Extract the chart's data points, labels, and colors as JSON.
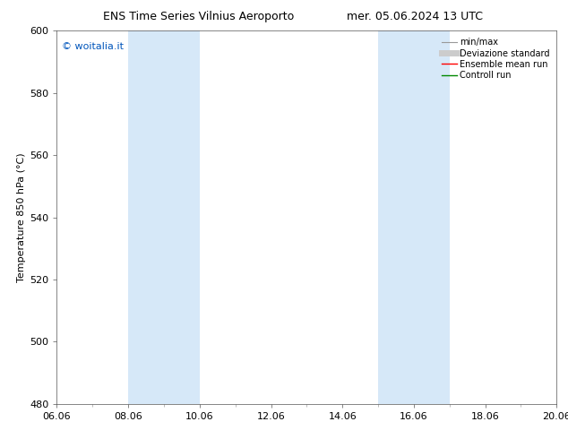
{
  "title_left": "ENS Time Series Vilnius Aeroporto",
  "title_right": "mer. 05.06.2024 13 UTC",
  "ylabel": "Temperature 850 hPa (°C)",
  "ylim": [
    480,
    600
  ],
  "yticks": [
    480,
    500,
    520,
    540,
    560,
    580,
    600
  ],
  "xtick_labels": [
    "06.06",
    "08.06",
    "10.06",
    "12.06",
    "14.06",
    "16.06",
    "18.06",
    "20.06"
  ],
  "xtick_positions": [
    0,
    2,
    4,
    6,
    8,
    10,
    12,
    14
  ],
  "total_x": 14,
  "watermark": "© woitalia.it",
  "shaded_bands": [
    {
      "x_start": 2,
      "x_end": 4,
      "color": "#d6e8f8"
    },
    {
      "x_start": 9,
      "x_end": 11,
      "color": "#d6e8f8"
    }
  ],
  "legend_entries": [
    {
      "label": "min/max",
      "color": "#999999"
    },
    {
      "label": "Deviazione standard",
      "color": "#cccccc"
    },
    {
      "label": "Ensemble mean run",
      "color": "#ff0000"
    },
    {
      "label": "Controll run",
      "color": "#008800"
    }
  ],
  "background_color": "#ffffff",
  "plot_bg_color": "#ffffff",
  "title_fontsize": 9,
  "ylabel_fontsize": 8,
  "tick_fontsize": 8,
  "legend_fontsize": 7,
  "watermark_fontsize": 8
}
